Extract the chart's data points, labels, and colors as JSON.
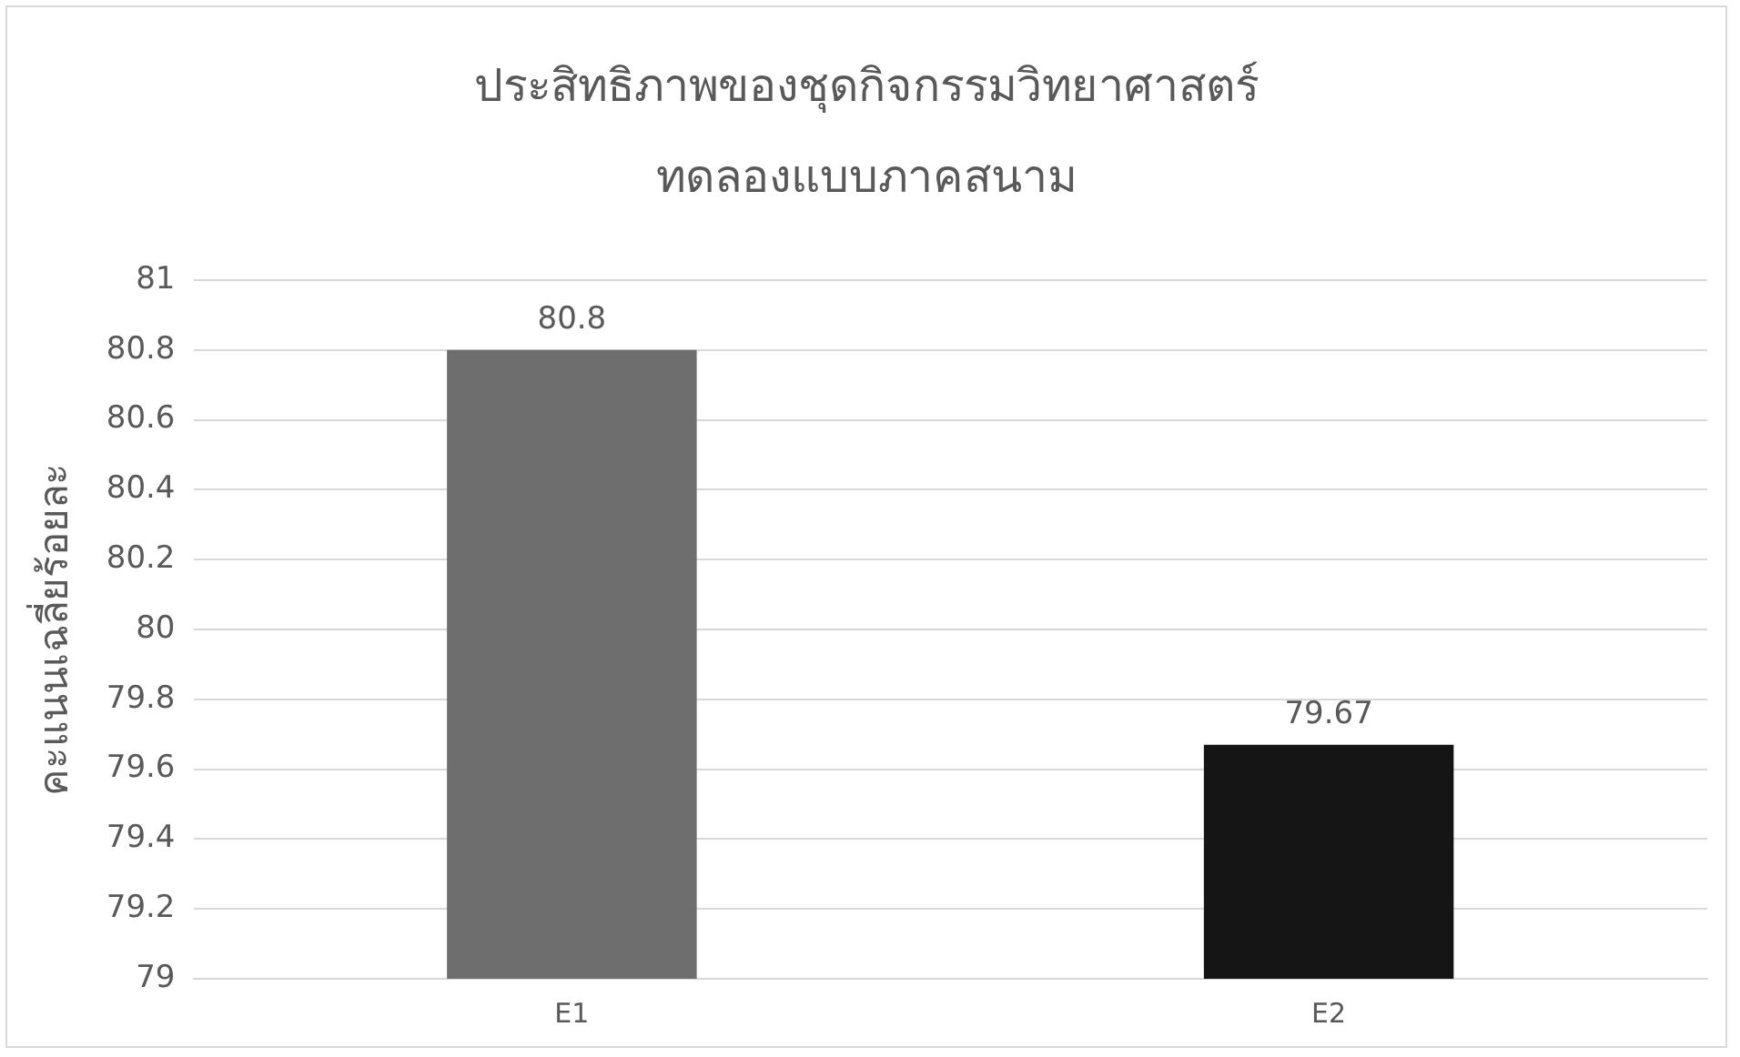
{
  "chart_data": {
    "type": "bar",
    "title": "ประสิทธิภาพของชุดกิจกรรมวิทยาศาสตร์",
    "subtitle": "ทดลองแบบภาคสนาม",
    "ylabel": "คะแนนเฉลี่ยร้อยละ",
    "categories": [
      "E1",
      "E2"
    ],
    "values": [
      80.8,
      79.67
    ],
    "colors": [
      "#6e6e6e",
      "#151515"
    ],
    "ylim": [
      79,
      81
    ],
    "yticks": [
      79,
      79.2,
      79.4,
      79.6,
      79.8,
      80,
      80.2,
      80.4,
      80.6,
      80.8,
      81
    ],
    "grid": "y",
    "legend": false,
    "data_labels": true
  }
}
